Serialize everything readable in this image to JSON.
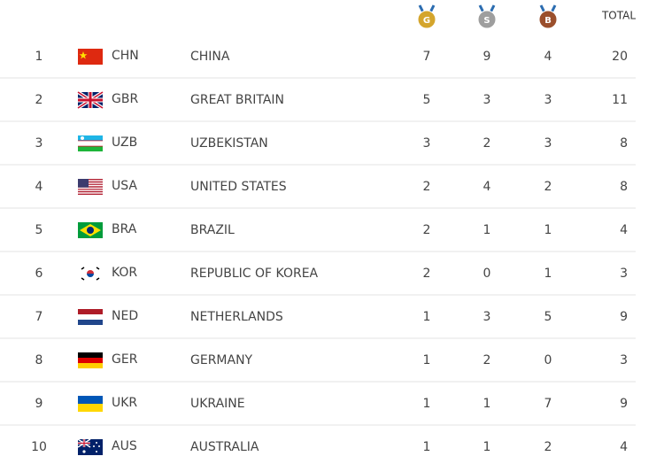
{
  "header": {
    "medals": [
      "G",
      "S",
      "B"
    ],
    "total": "TOTAL"
  },
  "table": {
    "rows": [
      [
        1,
        "CHN",
        "CHINA",
        7,
        9,
        4,
        20
      ],
      [
        2,
        "GBR",
        "GREAT BRITAIN",
        5,
        3,
        3,
        11
      ],
      [
        3,
        "UZB",
        "UZBEKISTAN",
        3,
        2,
        3,
        8
      ],
      [
        4,
        "USA",
        "UNITED STATES",
        2,
        4,
        2,
        8
      ],
      [
        5,
        "BRA",
        "BRAZIL",
        2,
        1,
        1,
        4
      ],
      [
        6,
        "KOR",
        "REPUBLIC OF KOREA",
        2,
        0,
        1,
        3
      ],
      [
        7,
        "NED",
        "NETHERLANDS",
        1,
        3,
        5,
        9
      ],
      [
        8,
        "GER",
        "GERMANY",
        1,
        2,
        0,
        3
      ],
      [
        9,
        "UKR",
        "UKRAINE",
        1,
        1,
        7,
        9
      ],
      [
        10,
        "AUS",
        "AUSTRALIA",
        1,
        1,
        2,
        4
      ]
    ]
  }
}
